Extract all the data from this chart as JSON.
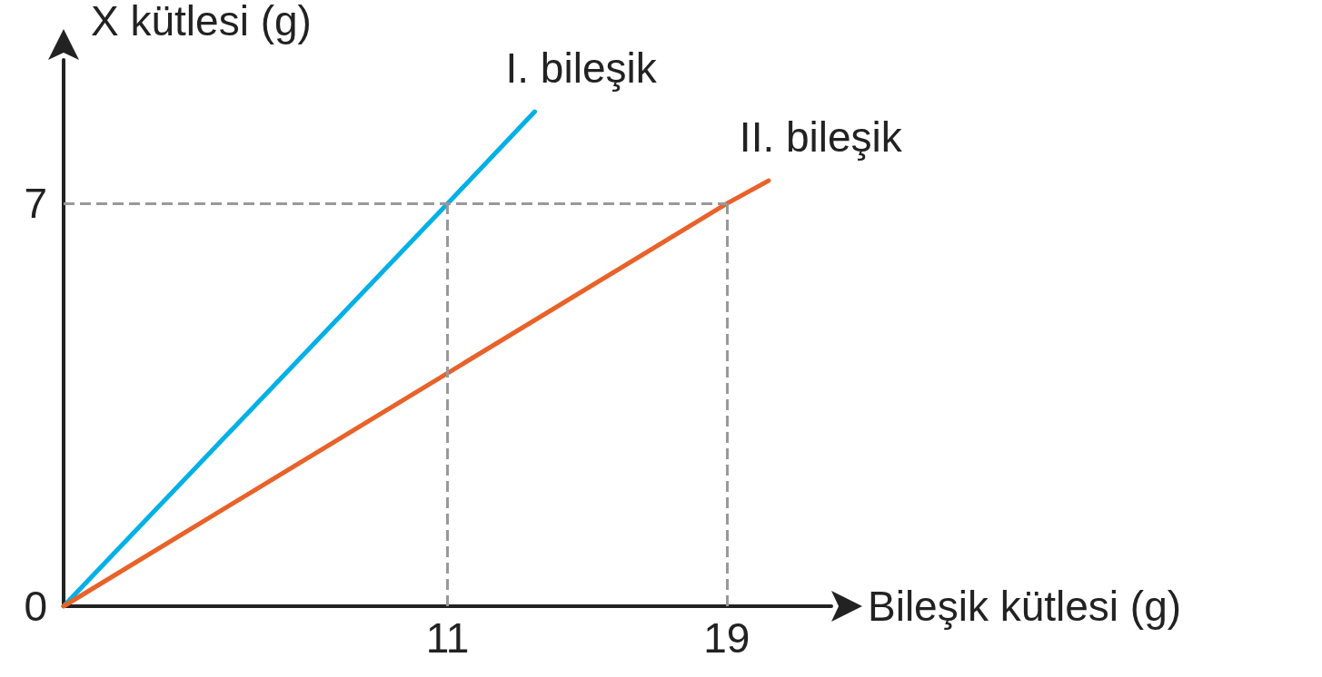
{
  "chart_data": {
    "type": "line",
    "xlabel": "Bileşik kütlesi (g)",
    "ylabel": "X kütlesi (g)",
    "xlim": [
      0,
      22
    ],
    "ylim": [
      0,
      9.5
    ],
    "xticks": [
      11,
      19
    ],
    "yticks": [
      0,
      7
    ],
    "series": [
      {
        "name": "I. bileşik",
        "color": "#00b0e6",
        "x": [
          0,
          11,
          13.5
        ],
        "values": [
          0,
          7,
          8.6
        ]
      },
      {
        "name": "II. bileşik",
        "color": "#e8622a",
        "x": [
          0,
          19,
          20.2
        ],
        "values": [
          0,
          7,
          7.4
        ]
      }
    ],
    "ref_lines": [
      {
        "axis": "y",
        "value": 7,
        "color": "#999999",
        "line_style": "dashed"
      },
      {
        "axis": "x",
        "value": 11,
        "color": "#999999",
        "line_style": "dashed"
      },
      {
        "axis": "x",
        "value": 19,
        "color": "#999999",
        "line_style": "dashed"
      }
    ],
    "grid": false,
    "legend": false,
    "marker": "none",
    "line_style": "solid"
  }
}
